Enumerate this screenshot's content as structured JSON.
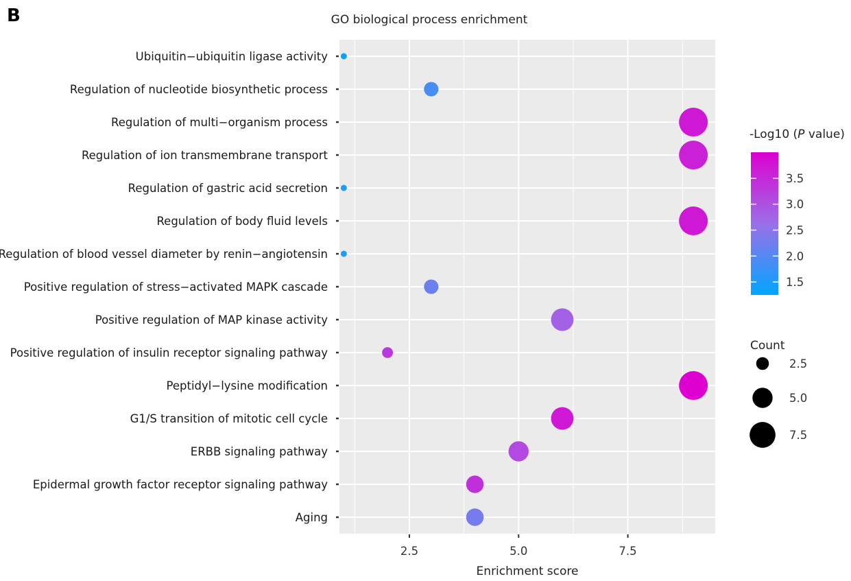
{
  "panel_label": "B",
  "chart_data": {
    "type": "scatter",
    "title": "GO biological process enrichment",
    "xlabel": "Enrichment score",
    "ylabel": "",
    "xlim": [
      0.9,
      9.5
    ],
    "x_ticks": [
      2.5,
      5.0,
      7.5
    ],
    "x_tick_labels": [
      "2.5",
      "5.0",
      "7.5"
    ],
    "grid": true,
    "categories": [
      "Ubiquitin−ubiquitin ligase activity",
      "Regulation of nucleotide biosynthetic process",
      "Regulation of multi−organism process",
      "Regulation of ion transmembrane transport",
      "Regulation of gastric acid secretion",
      "Regulation of body fluid levels",
      "Regulation of blood vessel diameter by renin−angiotensin",
      "Positive regulation of stress−activated MAPK cascade",
      "Positive regulation of MAP kinase activity",
      "Positive regulation of insulin receptor signaling pathway",
      "Peptidyl−lysine modification",
      "G1/S transition of mitotic cell cycle",
      "ERBB signaling pathway",
      "Epidermal growth factor receptor signaling pathway",
      "Aging"
    ],
    "points": [
      {
        "term": "Ubiquitin−ubiquitin ligase activity",
        "x": 1,
        "count": 1,
        "neglog10p": 1.3
      },
      {
        "term": "Regulation of nucleotide biosynthetic process",
        "x": 3,
        "count": 3,
        "neglog10p": 1.9
      },
      {
        "term": "Regulation of multi−organism process",
        "x": 9,
        "count": 9,
        "neglog10p": 3.7
      },
      {
        "term": "Regulation of ion transmembrane transport",
        "x": 9,
        "count": 9,
        "neglog10p": 3.6
      },
      {
        "term": "Regulation of gastric acid secretion",
        "x": 1,
        "count": 1,
        "neglog10p": 1.5
      },
      {
        "term": "Regulation of body fluid levels",
        "x": 9,
        "count": 9,
        "neglog10p": 3.7
      },
      {
        "term": "Regulation of blood vessel diameter by renin−angiotensin",
        "x": 1,
        "count": 1,
        "neglog10p": 1.5
      },
      {
        "term": "Positive regulation of stress−activated MAPK cascade",
        "x": 3,
        "count": 3,
        "neglog10p": 2.2
      },
      {
        "term": "Positive regulation of MAP kinase activity",
        "x": 6,
        "count": 6,
        "neglog10p": 2.8
      },
      {
        "term": "Positive regulation of insulin receptor signaling pathway",
        "x": 2,
        "count": 2,
        "neglog10p": 3.3
      },
      {
        "term": "Peptidyl−lysine modification",
        "x": 9,
        "count": 9,
        "neglog10p": 4.0
      },
      {
        "term": "G1/S transition of mitotic cell cycle",
        "x": 6,
        "count": 6,
        "neglog10p": 3.7
      },
      {
        "term": "ERBB signaling pathway",
        "x": 5,
        "count": 5,
        "neglog10p": 3.1
      },
      {
        "term": "Epidermal growth factor receptor signaling pathway",
        "x": 4,
        "count": 4,
        "neglog10p": 3.4
      },
      {
        "term": "Aging",
        "x": 4,
        "count": 4,
        "neglog10p": 2.3
      }
    ],
    "color_legend": {
      "title_prefix": "-Log10 (",
      "title_italic": "P",
      "title_suffix": " value)",
      "range": [
        1.25,
        4.0
      ],
      "ticks": [
        1.5,
        2.0,
        2.5,
        3.0,
        3.5
      ],
      "tick_labels": [
        "1.5",
        "2.0",
        "2.5",
        "3.0",
        "3.5"
      ],
      "low_color": "#00a6ff",
      "mid_color": "#9b6fe8",
      "high_color": "#dd00d0"
    },
    "size_legend": {
      "title": "Count",
      "values": [
        2.5,
        5.0,
        7.5
      ],
      "labels": [
        "2.5",
        "5.0",
        "7.5"
      ],
      "max_count": 9
    },
    "legend_position": "right",
    "panel_background": "#ebebeb",
    "grid_color": "#ffffff",
    "point_label_color": "#000000"
  }
}
